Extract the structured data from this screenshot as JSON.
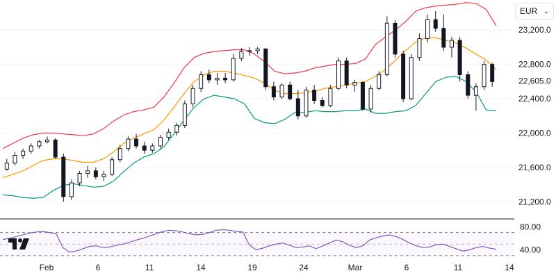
{
  "currency_selector": {
    "value": "EUR"
  },
  "logo": {
    "name": "tradingview-logo-icon"
  },
  "colors": {
    "upper_band": "#f23645",
    "middle_band": "#ff9800",
    "lower_band": "#089981",
    "rsi_line": "#7e57c2",
    "candle": "#131722",
    "price_label_bg": "#131722"
  },
  "chart_data": [
    {
      "type": "candlestick",
      "indicators": [
        "bollinger-upper",
        "bollinger-basis",
        "bollinger-lower"
      ],
      "ylim": [
        21000,
        23550
      ],
      "y_ticks": [
        21200,
        21600,
        22000,
        22400,
        22800,
        23200
      ],
      "y_tick_labels": [
        "21,200.0",
        "21,600.0",
        "22,000.0",
        "22,400.0",
        "22,800.0",
        "23,200.0"
      ],
      "last_price": 22605,
      "last_price_label": "22,605.0",
      "x_tick_labels": [
        "Feb",
        "6",
        "11",
        "14",
        "19",
        "24",
        "Mar",
        "6",
        "11",
        "14"
      ],
      "upper_band": [
        21820,
        21880,
        21940,
        21980,
        22000,
        22000,
        21990,
        21980,
        21970,
        21990,
        22050,
        22140,
        22210,
        22250,
        22270,
        22300,
        22420,
        22580,
        22760,
        22880,
        22930,
        22950,
        22960,
        22970,
        22970,
        22920,
        22830,
        22720,
        22690,
        22700,
        22720,
        22760,
        22780,
        22800,
        22800,
        22810,
        22860,
        23030,
        23120,
        23200,
        23300,
        23420,
        23460,
        23480,
        23490,
        23500,
        23520,
        23510,
        23440,
        23250
      ],
      "middle_band": [
        21480,
        21520,
        21560,
        21620,
        21680,
        21700,
        21700,
        21680,
        21660,
        21660,
        21700,
        21780,
        21880,
        21940,
        21990,
        22040,
        22150,
        22300,
        22460,
        22600,
        22680,
        22720,
        22720,
        22700,
        22670,
        22640,
        22580,
        22500,
        22460,
        22460,
        22470,
        22490,
        22520,
        22540,
        22560,
        22580,
        22600,
        22660,
        22740,
        22850,
        22960,
        23060,
        23110,
        23110,
        23080,
        23050,
        22990,
        22920,
        22850,
        22740
      ],
      "lower_band": [
        21280,
        21270,
        21250,
        21240,
        21250,
        21330,
        21390,
        21410,
        21390,
        21370,
        21380,
        21440,
        21550,
        21650,
        21720,
        21760,
        21840,
        21990,
        22150,
        22300,
        22400,
        22440,
        22420,
        22400,
        22340,
        22170,
        22120,
        22110,
        22160,
        22240,
        22240,
        22260,
        22250,
        22250,
        22260,
        22260,
        22280,
        22230,
        22230,
        22250,
        22260,
        22320,
        22460,
        22600,
        22650,
        22660,
        22600,
        22480,
        22270,
        22260
      ],
      "candles": [
        {
          "o": 21580,
          "h": 21700,
          "l": 21560,
          "c": 21650
        },
        {
          "o": 21650,
          "h": 21780,
          "l": 21620,
          "c": 21740
        },
        {
          "o": 21740,
          "h": 21820,
          "l": 21700,
          "c": 21790
        },
        {
          "o": 21790,
          "h": 21880,
          "l": 21760,
          "c": 21850
        },
        {
          "o": 21850,
          "h": 21920,
          "l": 21820,
          "c": 21900
        },
        {
          "o": 21900,
          "h": 21960,
          "l": 21880,
          "c": 21920
        },
        {
          "o": 21920,
          "h": 21940,
          "l": 21700,
          "c": 21720
        },
        {
          "o": 21720,
          "h": 21760,
          "l": 21200,
          "c": 21260
        },
        {
          "o": 21260,
          "h": 21460,
          "l": 21220,
          "c": 21420
        },
        {
          "o": 21420,
          "h": 21560,
          "l": 21380,
          "c": 21530
        },
        {
          "o": 21530,
          "h": 21620,
          "l": 21480,
          "c": 21560
        },
        {
          "o": 21560,
          "h": 21600,
          "l": 21460,
          "c": 21490
        },
        {
          "o": 21490,
          "h": 21560,
          "l": 21440,
          "c": 21520
        },
        {
          "o": 21520,
          "h": 21720,
          "l": 21500,
          "c": 21690
        },
        {
          "o": 21690,
          "h": 21860,
          "l": 21660,
          "c": 21820
        },
        {
          "o": 21820,
          "h": 21960,
          "l": 21790,
          "c": 21930
        },
        {
          "o": 21930,
          "h": 21990,
          "l": 21820,
          "c": 21850
        },
        {
          "o": 21850,
          "h": 21900,
          "l": 21760,
          "c": 21800
        },
        {
          "o": 21800,
          "h": 21880,
          "l": 21770,
          "c": 21850
        },
        {
          "o": 21850,
          "h": 21980,
          "l": 21820,
          "c": 21950
        },
        {
          "o": 21950,
          "h": 22050,
          "l": 21920,
          "c": 22010
        },
        {
          "o": 22010,
          "h": 22120,
          "l": 21970,
          "c": 22090
        },
        {
          "o": 22090,
          "h": 22380,
          "l": 22060,
          "c": 22340
        },
        {
          "o": 22340,
          "h": 22560,
          "l": 22300,
          "c": 22520
        },
        {
          "o": 22520,
          "h": 22720,
          "l": 22480,
          "c": 22680
        },
        {
          "o": 22680,
          "h": 22740,
          "l": 22580,
          "c": 22620
        },
        {
          "o": 22620,
          "h": 22700,
          "l": 22560,
          "c": 22640
        },
        {
          "o": 22640,
          "h": 22700,
          "l": 22580,
          "c": 22620
        },
        {
          "o": 22620,
          "h": 22920,
          "l": 22600,
          "c": 22870
        },
        {
          "o": 22870,
          "h": 22990,
          "l": 22840,
          "c": 22950
        },
        {
          "o": 22950,
          "h": 23000,
          "l": 22900,
          "c": 22960
        },
        {
          "o": 22960,
          "h": 23000,
          "l": 22920,
          "c": 22980
        },
        {
          "o": 22980,
          "h": 22990,
          "l": 22500,
          "c": 22540
        },
        {
          "o": 22540,
          "h": 22600,
          "l": 22380,
          "c": 22420
        },
        {
          "o": 22420,
          "h": 22580,
          "l": 22400,
          "c": 22560
        },
        {
          "o": 22560,
          "h": 22600,
          "l": 22380,
          "c": 22400
        },
        {
          "o": 22400,
          "h": 22500,
          "l": 22160,
          "c": 22200
        },
        {
          "o": 22200,
          "h": 22540,
          "l": 22180,
          "c": 22500
        },
        {
          "o": 22500,
          "h": 22560,
          "l": 22340,
          "c": 22380
        },
        {
          "o": 22380,
          "h": 22420,
          "l": 22300,
          "c": 22320
        },
        {
          "o": 22320,
          "h": 22560,
          "l": 22300,
          "c": 22520
        },
        {
          "o": 22520,
          "h": 22880,
          "l": 22500,
          "c": 22840
        },
        {
          "o": 22840,
          "h": 22880,
          "l": 22520,
          "c": 22560
        },
        {
          "o": 22560,
          "h": 22620,
          "l": 22480,
          "c": 22590
        },
        {
          "o": 22590,
          "h": 22600,
          "l": 22260,
          "c": 22280
        },
        {
          "o": 22280,
          "h": 22560,
          "l": 22240,
          "c": 22520
        },
        {
          "o": 22520,
          "h": 22720,
          "l": 22500,
          "c": 22680
        },
        {
          "o": 22680,
          "h": 23360,
          "l": 22660,
          "c": 23280
        },
        {
          "o": 23280,
          "h": 23320,
          "l": 22880,
          "c": 22920
        },
        {
          "o": 22920,
          "h": 22960,
          "l": 22360,
          "c": 22400
        },
        {
          "o": 22400,
          "h": 22920,
          "l": 22380,
          "c": 22880
        },
        {
          "o": 22880,
          "h": 23160,
          "l": 22840,
          "c": 23100
        },
        {
          "o": 23100,
          "h": 23380,
          "l": 23060,
          "c": 23320
        },
        {
          "o": 23320,
          "h": 23420,
          "l": 23180,
          "c": 23220
        },
        {
          "o": 23220,
          "h": 23380,
          "l": 22960,
          "c": 23000
        },
        {
          "o": 23000,
          "h": 23120,
          "l": 22880,
          "c": 23080
        },
        {
          "o": 23080,
          "h": 23120,
          "l": 22600,
          "c": 22680
        },
        {
          "o": 22680,
          "h": 22720,
          "l": 22400,
          "c": 22440
        },
        {
          "o": 22440,
          "h": 22580,
          "l": 22260,
          "c": 22540
        },
        {
          "o": 22540,
          "h": 22840,
          "l": 22500,
          "c": 22800
        },
        {
          "o": 22800,
          "h": 22820,
          "l": 22540,
          "c": 22600
        }
      ]
    },
    {
      "type": "line",
      "indicator": "rsi",
      "ylim": [
        25,
        90
      ],
      "y_ticks": [
        40,
        80
      ],
      "y_tick_labels": [
        "40.00",
        "80.00"
      ],
      "upper_band": 70,
      "middle_band": 50,
      "lower_band": 30,
      "values": [
        58,
        60,
        63,
        66,
        69,
        71,
        72,
        70,
        68,
        44,
        36,
        38,
        42,
        46,
        47,
        44,
        45,
        48,
        50,
        53,
        57,
        60,
        64,
        68,
        72,
        74,
        73,
        71,
        68,
        66,
        67,
        70,
        74,
        75,
        74,
        72,
        71,
        48,
        40,
        43,
        47,
        50,
        52,
        48,
        44,
        45,
        47,
        42,
        47,
        52,
        57,
        54,
        48,
        44,
        47,
        57,
        61,
        64,
        66,
        63,
        58,
        52,
        47,
        44,
        45,
        49,
        50,
        46,
        42,
        38,
        40,
        44,
        46,
        43,
        41
      ]
    }
  ]
}
